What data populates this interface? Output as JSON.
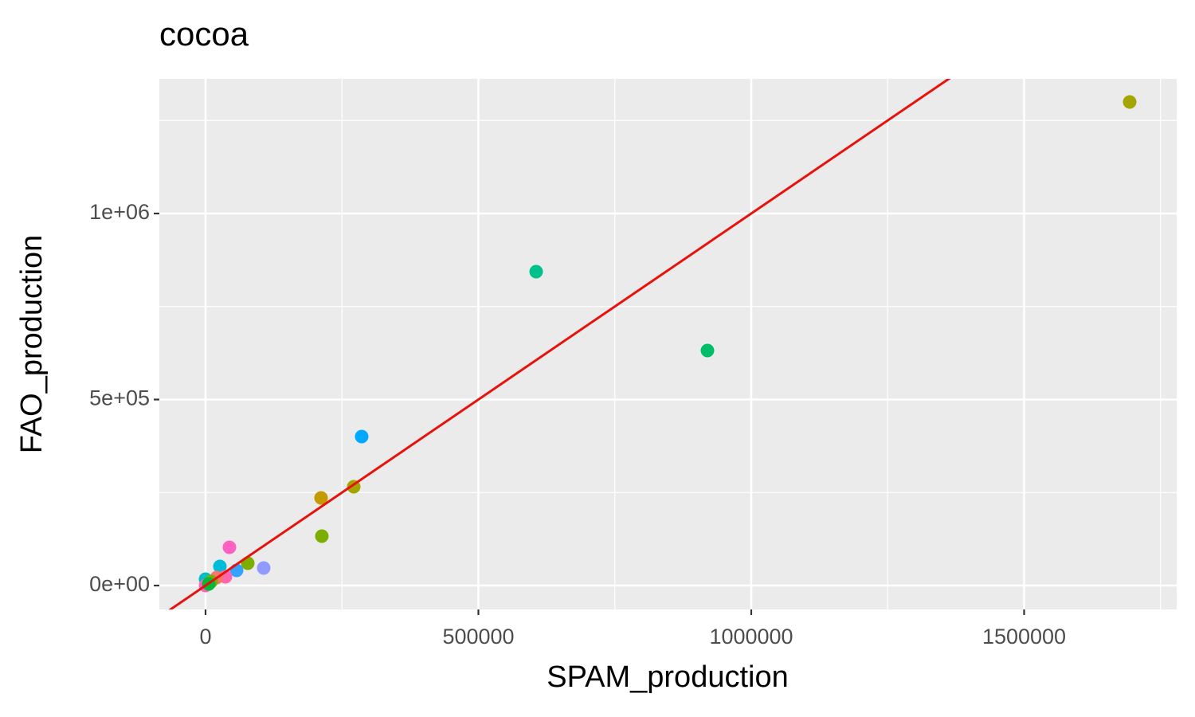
{
  "chart_data": {
    "type": "scatter",
    "title": "cocoa",
    "x_label": "SPAM_production",
    "y_label": "FAO_production",
    "x": [
      1693431,
      605839,
      919708,
      286131,
      211679,
      271533,
      213139,
      43796,
      77372,
      106569,
      56934,
      26277,
      36496,
      20438,
      0,
      10219,
      0,
      5839
    ],
    "values": [
      1299786,
      843683,
      631692,
      400428,
      235546,
      265525,
      132762,
      102784,
      59957,
      47109,
      40685,
      51392,
      23555,
      21413,
      17131,
      10707,
      0,
      4283
    ],
    "colors": [
      "#a3a500",
      "#00c08b",
      "#00be67",
      "#00a9ff",
      "#c49a00",
      "#a3a500",
      "#7cae00",
      "#ff61c3",
      "#7cae00",
      "#8f9bff",
      "#35a2ff",
      "#00bcd8",
      "#ff65ac",
      "#f8766d",
      "#00bfc4",
      "#7cae00",
      "#ff61c3",
      "#00ba38"
    ],
    "xlim": [
      -84672,
      1779562
    ],
    "ylim": [
      -64240,
      1361884
    ],
    "xticks": [
      0,
      500000,
      1000000,
      1500000
    ],
    "yticks": [
      {
        "value": 0,
        "label": "0e+00"
      },
      {
        "value": 500000,
        "label": "5e+05"
      },
      {
        "value": 1000000,
        "label": "1e+06"
      }
    ],
    "x_minor_breaks": [
      250000,
      750000,
      1250000,
      1750000
    ],
    "y_minor_breaks": [
      250000,
      750000,
      1250000
    ],
    "grid": true,
    "reference_line": {
      "slope": 1,
      "intercept": 0,
      "color": "#e8120c"
    }
  }
}
